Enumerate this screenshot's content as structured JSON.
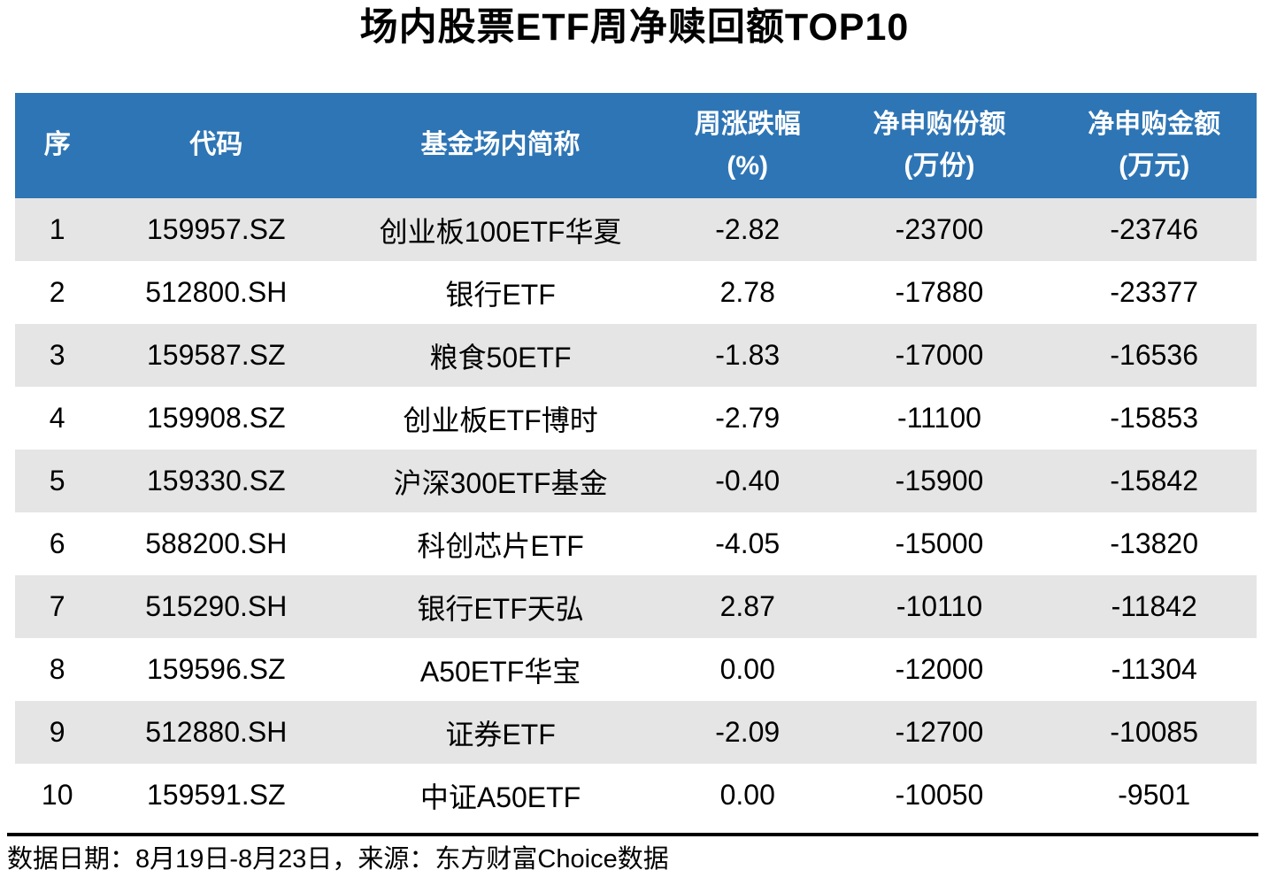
{
  "title": "场内股票ETF周净赎回额TOP10",
  "chart_data": {
    "type": "table",
    "title": "场内股票ETF周净赎回额TOP10",
    "column_keys": [
      "no",
      "code",
      "name",
      "chg",
      "shares",
      "amount"
    ],
    "columns": [
      {
        "key": "no",
        "line1": "序",
        "line2": ""
      },
      {
        "key": "code",
        "line1": "代码",
        "line2": ""
      },
      {
        "key": "name",
        "line1": "基金场内简称",
        "line2": ""
      },
      {
        "key": "chg",
        "line1": "周涨跌幅",
        "line2": "(%)"
      },
      {
        "key": "shares",
        "line1": "净申购份额",
        "line2": "(万份)"
      },
      {
        "key": "amount",
        "line1": "净申购金额",
        "line2": "(万元)"
      }
    ],
    "rows": [
      {
        "no": "1",
        "code": "159957.SZ",
        "name": "创业板100ETF华夏",
        "chg": "-2.82",
        "shares": "-23700",
        "amount": "-23746"
      },
      {
        "no": "2",
        "code": "512800.SH",
        "name": "银行ETF",
        "chg": "2.78",
        "shares": "-17880",
        "amount": "-23377"
      },
      {
        "no": "3",
        "code": "159587.SZ",
        "name": "粮食50ETF",
        "chg": "-1.83",
        "shares": "-17000",
        "amount": "-16536"
      },
      {
        "no": "4",
        "code": "159908.SZ",
        "name": "创业板ETF博时",
        "chg": "-2.79",
        "shares": "-11100",
        "amount": "-15853"
      },
      {
        "no": "5",
        "code": "159330.SZ",
        "name": "沪深300ETF基金",
        "chg": "-0.40",
        "shares": "-15900",
        "amount": "-15842"
      },
      {
        "no": "6",
        "code": "588200.SH",
        "name": "科创芯片ETF",
        "chg": "-4.05",
        "shares": "-15000",
        "amount": "-13820"
      },
      {
        "no": "7",
        "code": "515290.SH",
        "name": "银行ETF天弘",
        "chg": "2.87",
        "shares": "-10110",
        "amount": "-11842"
      },
      {
        "no": "8",
        "code": "159596.SZ",
        "name": "A50ETF华宝",
        "chg": "0.00",
        "shares": "-12000",
        "amount": "-11304"
      },
      {
        "no": "9",
        "code": "512880.SH",
        "name": "证券ETF",
        "chg": "-2.09",
        "shares": "-12700",
        "amount": "-10085"
      },
      {
        "no": "10",
        "code": "159591.SZ",
        "name": "中证A50ETF",
        "chg": "0.00",
        "shares": "-10050",
        "amount": "-9501"
      }
    ]
  },
  "footer": {
    "note": "数据日期：8月19日-8月23日，来源：东方财富Choice数据"
  },
  "colors": {
    "header_bg": "#2E75B5",
    "header_text": "#FFFFFF",
    "row_alt_bg": "#E5E5E5",
    "row_bg": "#FFFFFF",
    "text": "#000000",
    "rule": "#000000"
  }
}
